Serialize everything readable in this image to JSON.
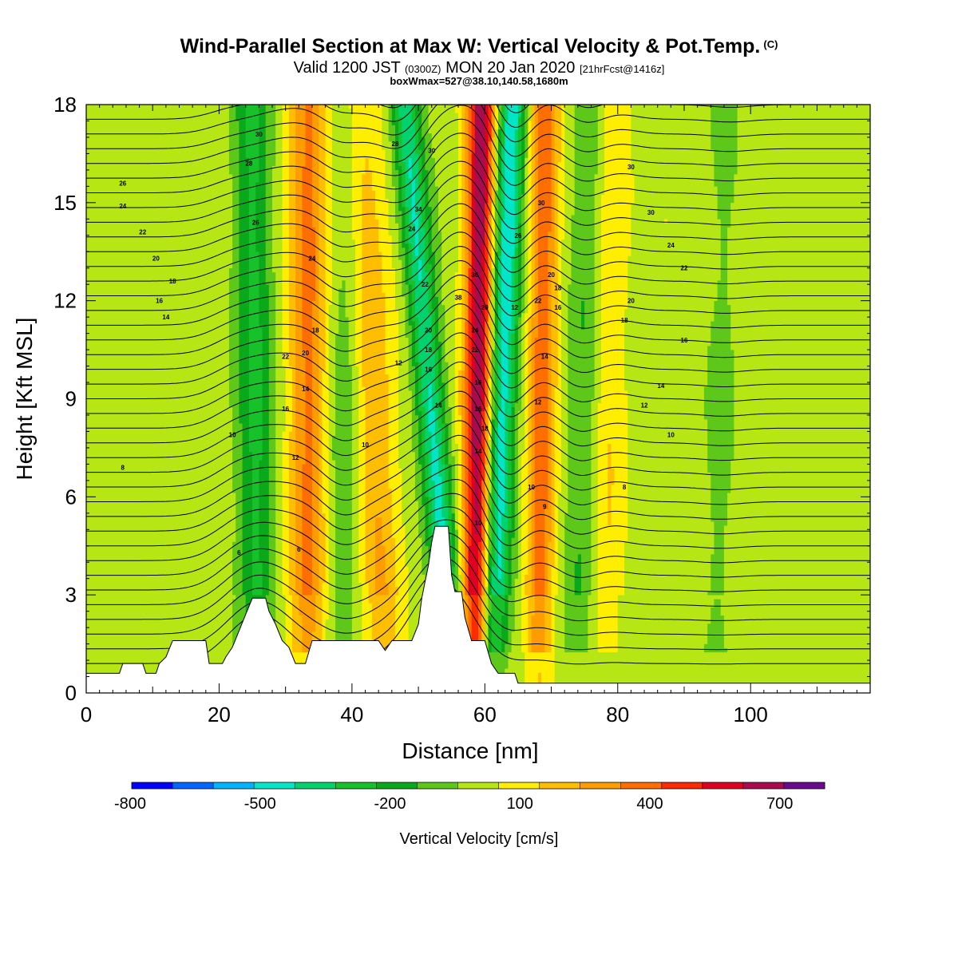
{
  "header": {
    "title": "Wind-Parallel Section at Max W: Vertical Velocity & Pot.Temp.",
    "copyright_mark": "(C)",
    "valid_prefix": "Valid 1200 JST",
    "valid_zulu": "(0300Z)",
    "valid_date": "MON 20 Jan 2020",
    "forecast": "[21hrFcst@1416z]",
    "box_info": "boxWmax=527@38.10,140.58,1680m"
  },
  "chart_data": {
    "type": "heatmap",
    "xlabel": "Distance [nm]",
    "ylabel": "Height [Kft MSL]",
    "xlim": [
      0,
      118
    ],
    "ylim": [
      0,
      18
    ],
    "x_ticks": [
      0,
      20,
      40,
      60,
      80,
      100
    ],
    "y_ticks": [
      0,
      3,
      6,
      9,
      12,
      15,
      18
    ],
    "colorbar": {
      "label": "Vertical Velocity [cm/s]",
      "min": -800,
      "max": 800,
      "step": 100,
      "tick_values": [
        -800,
        -500,
        -200,
        100,
        400,
        700
      ],
      "tick_labels": [
        "-800",
        "-500",
        "-200",
        "100",
        "400",
        "700"
      ],
      "colors": [
        "#0000ff",
        "#0066ff",
        "#00b4ff",
        "#00e5c8",
        "#00d26e",
        "#16c12a",
        "#0aa91c",
        "#5ec81a",
        "#b7e615",
        "#ffee00",
        "#ffbf00",
        "#ff9c00",
        "#ff6e00",
        "#ff2a00",
        "#e00022",
        "#aa0a4e",
        "#6a0a8c"
      ]
    },
    "terrain_kft": [
      [
        0,
        0.6
      ],
      [
        5,
        0.6
      ],
      [
        5.5,
        0.9
      ],
      [
        8.5,
        0.9
      ],
      [
        9,
        0.6
      ],
      [
        10.5,
        0.6
      ],
      [
        11,
        0.9
      ],
      [
        12,
        1.1
      ],
      [
        13,
        1.6
      ],
      [
        18,
        1.6
      ],
      [
        18.5,
        0.9
      ],
      [
        20.5,
        0.9
      ],
      [
        21,
        1.1
      ],
      [
        22,
        1.4
      ],
      [
        23,
        1.9
      ],
      [
        24,
        2.4
      ],
      [
        25,
        2.9
      ],
      [
        27,
        2.9
      ],
      [
        27.5,
        2.5
      ],
      [
        28.5,
        2.1
      ],
      [
        29.5,
        1.6
      ],
      [
        30.5,
        1.4
      ],
      [
        31.5,
        0.9
      ],
      [
        33,
        0.9
      ],
      [
        34,
        1.6
      ],
      [
        44,
        1.6
      ],
      [
        45,
        1.3
      ],
      [
        46,
        1.6
      ],
      [
        49,
        1.6
      ],
      [
        50,
        2.1
      ],
      [
        50.5,
        2.9
      ],
      [
        51,
        3.4
      ],
      [
        51.5,
        3.9
      ],
      [
        52,
        4.6
      ],
      [
        52.5,
        5.1
      ],
      [
        54.5,
        5.1
      ],
      [
        55,
        3.6
      ],
      [
        55.5,
        3.1
      ],
      [
        56.5,
        3.1
      ],
      [
        57,
        2.3
      ],
      [
        58,
        1.6
      ],
      [
        60,
        1.6
      ],
      [
        61,
        0.9
      ],
      [
        62,
        0.6
      ],
      [
        64.5,
        0.6
      ],
      [
        65,
        0.3
      ],
      [
        118,
        0.3
      ]
    ],
    "w_bands_cm_s": [
      {
        "x_bottom": 26,
        "x_top": 25,
        "w": -260,
        "description": "downdraft band"
      },
      {
        "x_bottom": 33.5,
        "x_top": 33.5,
        "w": 350,
        "description": "updraft band"
      },
      {
        "x_bottom": 38,
        "x_top": 40,
        "w": -120
      },
      {
        "x_bottom": 45,
        "x_top": 41,
        "w": 230
      },
      {
        "x_bottom": 55.5,
        "x_top": 48,
        "w": -450
      },
      {
        "x_bottom": 58.5,
        "x_top": 59.5,
        "w": 700
      },
      {
        "x_bottom": 61,
        "x_top": 64,
        "w": -550
      },
      {
        "x_bottom": 68,
        "x_top": 69,
        "w": 430
      },
      {
        "x_bottom": 74,
        "x_top": 76,
        "w": -200
      },
      {
        "x_bottom": 78,
        "x_top": 79,
        "w": 180
      },
      {
        "x_bottom": 95,
        "x_top": 97,
        "w": -60
      }
    ],
    "theta_contour_labels": [
      {
        "x": 5.5,
        "kft": 15.6,
        "text": "26"
      },
      {
        "x": 5.5,
        "kft": 14.9,
        "text": "24"
      },
      {
        "x": 8.5,
        "kft": 14.1,
        "text": "22"
      },
      {
        "x": 10.5,
        "kft": 13.3,
        "text": "20"
      },
      {
        "x": 13,
        "kft": 12.6,
        "text": "18"
      },
      {
        "x": 11,
        "kft": 12.0,
        "text": "16"
      },
      {
        "x": 12,
        "kft": 11.5,
        "text": "14"
      },
      {
        "x": 5.5,
        "kft": 6.9,
        "text": "8"
      },
      {
        "x": 22,
        "kft": 7.9,
        "text": "10"
      },
      {
        "x": 23,
        "kft": 4.3,
        "text": "6"
      },
      {
        "x": 26,
        "kft": 17.1,
        "text": "30"
      },
      {
        "x": 24.5,
        "kft": 16.2,
        "text": "28"
      },
      {
        "x": 25.5,
        "kft": 14.4,
        "text": "26"
      },
      {
        "x": 30,
        "kft": 10.3,
        "text": "22"
      },
      {
        "x": 33,
        "kft": 10.4,
        "text": "20"
      },
      {
        "x": 34.5,
        "kft": 11.1,
        "text": "18"
      },
      {
        "x": 34,
        "kft": 13.3,
        "text": "24"
      },
      {
        "x": 30,
        "kft": 8.7,
        "text": "16"
      },
      {
        "x": 33,
        "kft": 9.3,
        "text": "14"
      },
      {
        "x": 31.5,
        "kft": 7.2,
        "text": "12"
      },
      {
        "x": 32,
        "kft": 4.4,
        "text": "6"
      },
      {
        "x": 42,
        "kft": 7.6,
        "text": "10"
      },
      {
        "x": 47,
        "kft": 10.1,
        "text": "12"
      },
      {
        "x": 46.5,
        "kft": 16.8,
        "text": "28"
      },
      {
        "x": 52,
        "kft": 16.6,
        "text": "30"
      },
      {
        "x": 50,
        "kft": 14.8,
        "text": "34"
      },
      {
        "x": 49,
        "kft": 14.2,
        "text": "24"
      },
      {
        "x": 51,
        "kft": 12.5,
        "text": "22"
      },
      {
        "x": 51.5,
        "kft": 11.1,
        "text": "20"
      },
      {
        "x": 51.5,
        "kft": 10.5,
        "text": "18"
      },
      {
        "x": 51.5,
        "kft": 9.9,
        "text": "16"
      },
      {
        "x": 53,
        "kft": 8.8,
        "text": "14"
      },
      {
        "x": 56,
        "kft": 12.1,
        "text": "38"
      },
      {
        "x": 58.5,
        "kft": 12.8,
        "text": "36"
      },
      {
        "x": 60,
        "kft": 11.8,
        "text": "20"
      },
      {
        "x": 58.5,
        "kft": 11.1,
        "text": "24"
      },
      {
        "x": 58.5,
        "kft": 10.5,
        "text": "22"
      },
      {
        "x": 59,
        "kft": 9.5,
        "text": "16"
      },
      {
        "x": 59,
        "kft": 8.7,
        "text": "16"
      },
      {
        "x": 60,
        "kft": 8.1,
        "text": "18"
      },
      {
        "x": 59,
        "kft": 7.4,
        "text": "14"
      },
      {
        "x": 59,
        "kft": 5.2,
        "text": "10"
      },
      {
        "x": 65,
        "kft": 14.0,
        "text": "26"
      },
      {
        "x": 68.5,
        "kft": 15.0,
        "text": "30"
      },
      {
        "x": 64.5,
        "kft": 11.8,
        "text": "12"
      },
      {
        "x": 68,
        "kft": 12.0,
        "text": "22"
      },
      {
        "x": 70,
        "kft": 12.8,
        "text": "20"
      },
      {
        "x": 71,
        "kft": 12.4,
        "text": "18"
      },
      {
        "x": 71,
        "kft": 11.8,
        "text": "16"
      },
      {
        "x": 69,
        "kft": 10.3,
        "text": "14"
      },
      {
        "x": 68,
        "kft": 8.9,
        "text": "12"
      },
      {
        "x": 67,
        "kft": 6.3,
        "text": "10"
      },
      {
        "x": 69,
        "kft": 5.7,
        "text": "9"
      },
      {
        "x": 82,
        "kft": 16.1,
        "text": "30"
      },
      {
        "x": 85,
        "kft": 14.7,
        "text": "30"
      },
      {
        "x": 88,
        "kft": 13.7,
        "text": "24"
      },
      {
        "x": 90,
        "kft": 13.0,
        "text": "22"
      },
      {
        "x": 82,
        "kft": 12.0,
        "text": "20"
      },
      {
        "x": 81,
        "kft": 11.4,
        "text": "18"
      },
      {
        "x": 90,
        "kft": 10.8,
        "text": "16"
      },
      {
        "x": 86.5,
        "kft": 9.4,
        "text": "14"
      },
      {
        "x": 84,
        "kft": 8.8,
        "text": "12"
      },
      {
        "x": 88,
        "kft": 7.9,
        "text": "10"
      },
      {
        "x": 81,
        "kft": 6.3,
        "text": "8"
      }
    ]
  }
}
